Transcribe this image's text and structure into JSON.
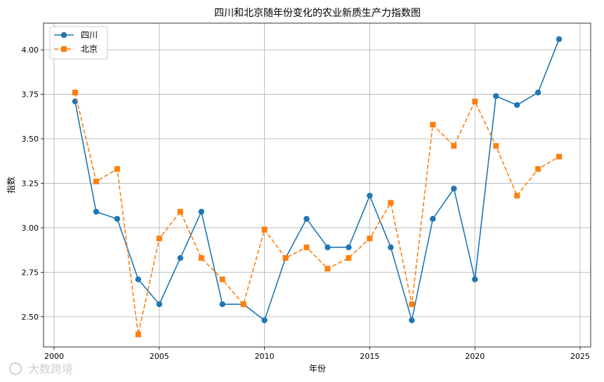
{
  "chart_data": {
    "type": "line",
    "title": "四川和北京随年份变化的农业新质生产力指数图",
    "xlabel": "年份",
    "ylabel": "指数",
    "xlim": [
      1999.5,
      2025.5
    ],
    "ylim": [
      2.33,
      4.15
    ],
    "xticks": [
      2000,
      2005,
      2010,
      2015,
      2020,
      2025
    ],
    "yticks": [
      2.5,
      2.75,
      3.0,
      3.25,
      3.5,
      3.75,
      4.0
    ],
    "grid": true,
    "legend_position": "upper-left",
    "x": [
      2001,
      2002,
      2003,
      2004,
      2005,
      2006,
      2007,
      2008,
      2009,
      2010,
      2011,
      2012,
      2013,
      2014,
      2015,
      2016,
      2017,
      2018,
      2019,
      2020,
      2021,
      2022,
      2023,
      2024
    ],
    "series": [
      {
        "name": "四川",
        "color": "#1f77b4",
        "marker": "circle",
        "linestyle": "solid",
        "values": [
          3.71,
          3.09,
          3.05,
          2.71,
          2.57,
          2.83,
          3.09,
          2.57,
          2.57,
          2.48,
          2.83,
          3.05,
          2.89,
          2.89,
          3.18,
          2.89,
          2.48,
          3.05,
          3.22,
          2.71,
          3.74,
          3.69,
          3.76,
          4.06
        ]
      },
      {
        "name": "北京",
        "color": "#ff7f0e",
        "marker": "square",
        "linestyle": "dashed",
        "values": [
          3.76,
          3.26,
          3.33,
          2.4,
          2.94,
          3.09,
          2.83,
          2.71,
          2.57,
          2.99,
          2.83,
          2.89,
          2.77,
          2.83,
          2.94,
          3.14,
          2.57,
          3.58,
          3.46,
          3.71,
          3.46,
          3.18,
          3.33,
          3.4
        ]
      }
    ]
  },
  "watermark_text": "大数跨境"
}
